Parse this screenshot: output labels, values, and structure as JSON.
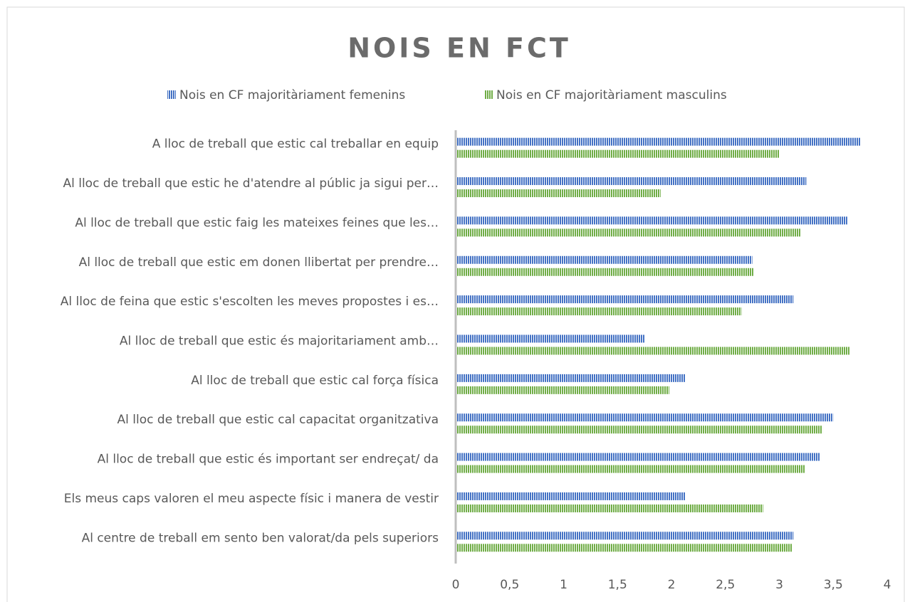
{
  "chart_data": {
    "type": "barh",
    "title": "NOIS EN FCT",
    "categories": [
      "A lloc de treball que estic cal treballar en equip",
      "Al lloc de treball que estic he d'atendre al públic ja sigui per…",
      "Al lloc de treball que estic faig les mateixes feines que les…",
      "Al lloc de treball que estic em donen llibertat per prendre…",
      "Al lloc de feina que estic s'escolten les meves propostes i es…",
      "Al lloc de treball que estic és majoritariament amb…",
      "Al lloc de treball que estic cal força física",
      "Al lloc de treball que estic cal capacitat organitzativa",
      "Al lloc de treball que estic és important ser endreçat/ da",
      "Els meus caps valoren el meu aspecte físic i manera de vestir",
      "Al centre de treball em sento ben valorat/da pels superiors"
    ],
    "series": [
      {
        "name": "Nois en CF majoritàriament femenins",
        "color": "#4472c4",
        "values": [
          3.75,
          3.25,
          3.63,
          2.75,
          3.13,
          1.75,
          2.13,
          3.5,
          3.38,
          2.13,
          3.13
        ]
      },
      {
        "name": "Nois en CF majoritàriament masculins",
        "color": "#70ad47",
        "values": [
          3.0,
          1.9,
          3.2,
          2.76,
          2.65,
          3.65,
          1.98,
          3.4,
          3.24,
          2.85,
          3.12
        ]
      }
    ],
    "xlim": [
      0,
      4
    ],
    "xticks": [
      0,
      {
        "value": 0.5,
        "label": "0,5"
      },
      1,
      {
        "value": 1.5,
        "label": "1,5"
      },
      2,
      {
        "value": 2.5,
        "label": "2,5"
      },
      3,
      {
        "value": 3.5,
        "label": "3,5"
      },
      4
    ],
    "legend": "top",
    "grid": false
  }
}
